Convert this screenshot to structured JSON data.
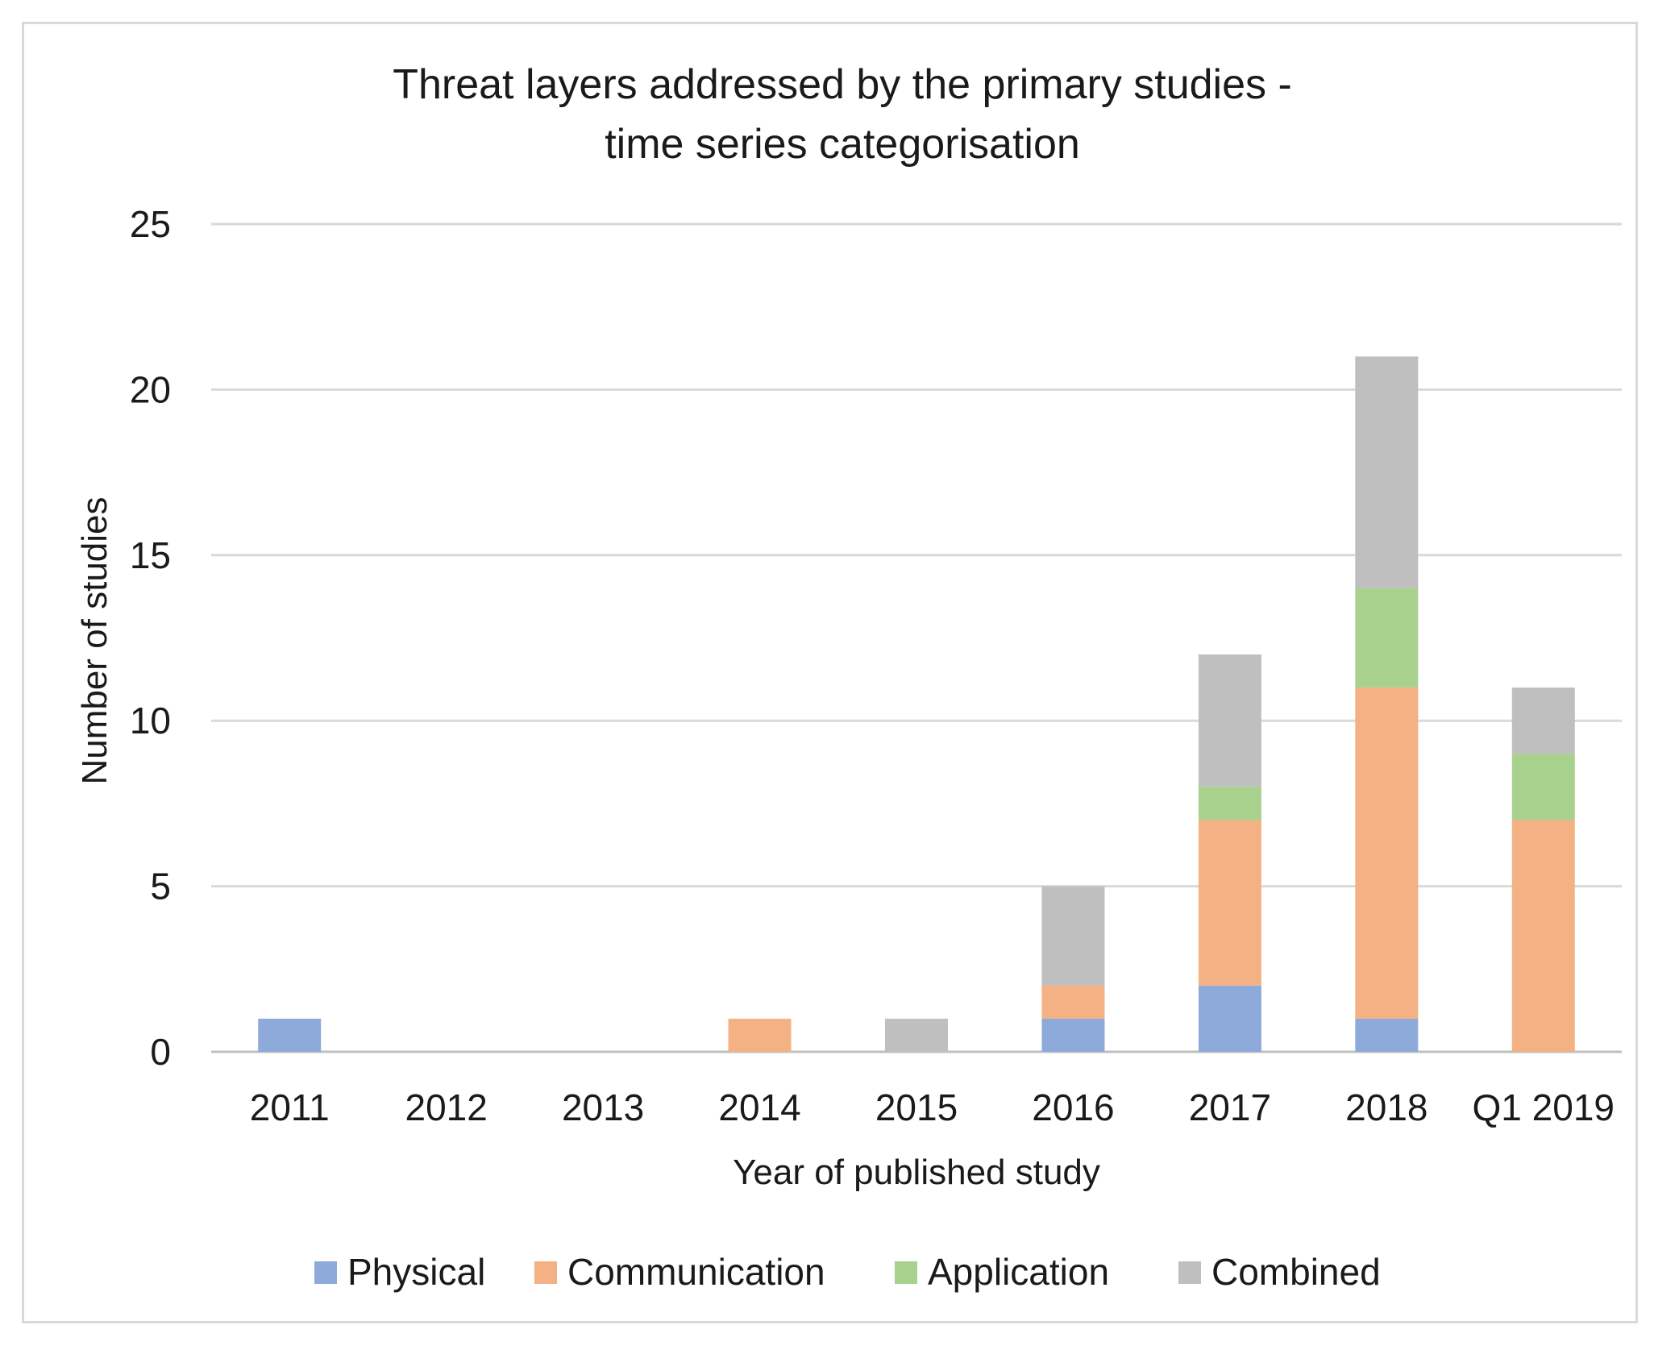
{
  "chart_data": {
    "type": "bar",
    "stacked": true,
    "title_lines": [
      "Threat layers addressed by the primary studies  -",
      "time series categorisation"
    ],
    "xlabel": "Year of published study",
    "ylabel": "Number of studies",
    "ylim": [
      0,
      25
    ],
    "yticks": [
      0,
      5,
      10,
      15,
      20,
      25
    ],
    "grid": true,
    "legend_position": "bottom",
    "categories": [
      "2011",
      "2012",
      "2013",
      "2014",
      "2015",
      "2016",
      "2017",
      "2018",
      "Q1 2019"
    ],
    "series": [
      {
        "name": "Physical",
        "color": "#8eaadb",
        "values": [
          1,
          0,
          0,
          0,
          0,
          1,
          2,
          1,
          0
        ]
      },
      {
        "name": "Communication",
        "color": "#f4b183",
        "values": [
          0,
          0,
          0,
          1,
          0,
          1,
          5,
          10,
          7
        ]
      },
      {
        "name": "Application",
        "color": "#a9d18e",
        "values": [
          0,
          0,
          0,
          0,
          0,
          0,
          1,
          3,
          2
        ]
      },
      {
        "name": "Combined",
        "color": "#bfbfbf",
        "values": [
          0,
          0,
          0,
          0,
          1,
          3,
          4,
          7,
          2
        ]
      }
    ]
  }
}
